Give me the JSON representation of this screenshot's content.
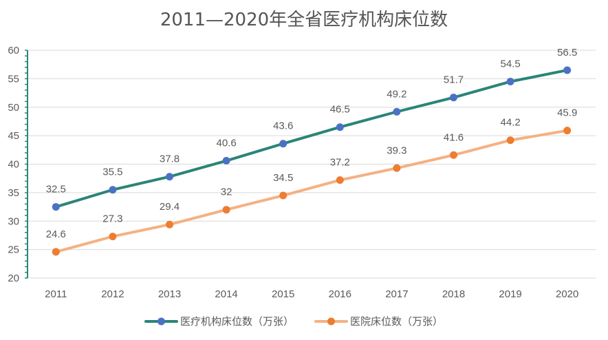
{
  "chart_data": {
    "type": "line",
    "title": "2011—2020年全省医疗机构床位数",
    "categories": [
      "2011",
      "2012",
      "2013",
      "2014",
      "2015",
      "2016",
      "2017",
      "2018",
      "2019",
      "2020"
    ],
    "series": [
      {
        "name": "医疗机构床位数（万张）",
        "values": [
          32.5,
          35.5,
          37.8,
          40.6,
          43.6,
          46.5,
          49.2,
          51.7,
          54.5,
          56.5
        ],
        "labels": [
          "32.5",
          "35.5",
          "37.8",
          "40.6",
          "43.6",
          "46.5",
          "49.2",
          "51.7",
          "54.5",
          "56.5"
        ],
        "line_color": "#2a8577",
        "marker_color": "#4a72c4"
      },
      {
        "name": "医院床位数（万张）",
        "values": [
          24.6,
          27.3,
          29.4,
          32,
          34.5,
          37.2,
          39.3,
          41.6,
          44.2,
          45.9
        ],
        "labels": [
          "24.6",
          "27.3",
          "29.4",
          "32",
          "34.5",
          "37.2",
          "39.3",
          "41.6",
          "44.2",
          "45.9"
        ],
        "line_color": "#f4b183",
        "marker_color": "#ed7d31"
      }
    ],
    "yticks": [
      "20",
      "25",
      "30",
      "35",
      "40",
      "45",
      "50",
      "55",
      "60"
    ],
    "ylim": [
      20,
      60
    ],
    "xlabel": "",
    "ylabel": "",
    "grid": true,
    "legend_position": "bottom",
    "axis_color": "#2a8577",
    "grid_color": "#d9d9d9"
  }
}
